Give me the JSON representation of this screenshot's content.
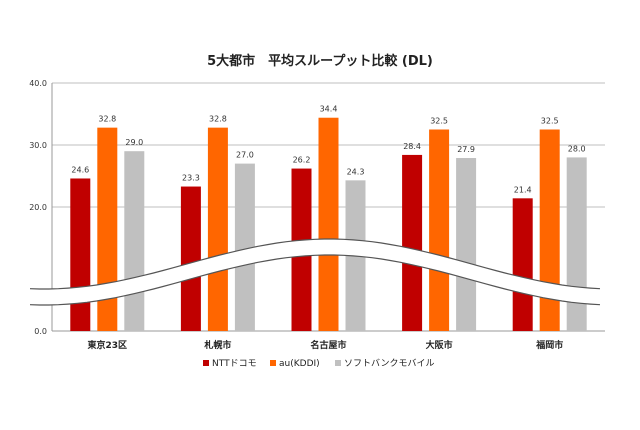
{
  "chart_data": {
    "type": "bar",
    "title": "5大都市　平均スループット比較 (DL)",
    "categories": [
      "東京23区",
      "札幌市",
      "名古屋市",
      "大阪市",
      "福岡市"
    ],
    "series": [
      {
        "name": "NTTドコモ",
        "color": "#c00000",
        "values": [
          24.6,
          23.3,
          26.2,
          28.4,
          21.4
        ]
      },
      {
        "name": "au(KDDI)",
        "color": "#ff6600",
        "values": [
          32.8,
          32.8,
          34.4,
          32.5,
          32.5
        ]
      },
      {
        "name": "ソフトバンクモバイル",
        "color": "#c0c0c0",
        "values": [
          29.0,
          27.0,
          24.3,
          27.9,
          28.0
        ]
      }
    ],
    "y_ticks": [
      "0.0",
      "20.0",
      "30.0",
      "40.0"
    ],
    "axis_break": true,
    "legend_position": "bottom",
    "grid": true
  }
}
